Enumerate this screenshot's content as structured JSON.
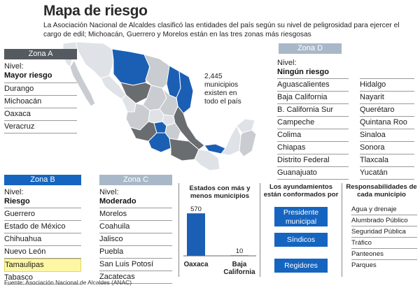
{
  "title": "Mapa de riesgo",
  "lead": "La Asociación Nacional de Alcaldes clasificó las entidades del país según su nivel de peligrosidad para ejercer el cargo de edil; Michoacán, Guerrero y Morelos están en las tres zonas más riesgosas",
  "map_note": [
    "2,445",
    "municipios",
    "existen en",
    "todo el país"
  ],
  "colors": {
    "zone_a": "#555a60",
    "zone_b": "#1565c0",
    "zone_c": "#a9b8c8",
    "zone_d": "#a9b8c8",
    "map_dark": "#6a6d70",
    "map_blue": "#1a5fb4",
    "map_light": "#c9ccd0",
    "map_pale": "#dfe2e6",
    "highlight": "#fdf7a4"
  },
  "zone_a": {
    "header": "Zona A",
    "level_prefix": "Nivel:",
    "level": "Mayor riesgo",
    "items": [
      "Durango",
      "Michoacán",
      "Oaxaca",
      "Veracruz"
    ]
  },
  "zone_d": {
    "header": "Zona D",
    "level_prefix": "Nivel:",
    "level": "Ningún riesgo",
    "col1": [
      "Aguascalientes",
      "Baja California",
      "B. California Sur",
      "Campeche",
      "Colima",
      "Chiapas",
      "Distrito Federal",
      "Guanajuato"
    ],
    "col2": [
      "Hidalgo",
      "Nayarit",
      "Querétaro",
      "Quintana Roo",
      "Sinaloa",
      "Sonora",
      "Tlaxcala",
      "Yucatán"
    ]
  },
  "zone_b": {
    "header": "Zona B",
    "level_prefix": "Nivel:",
    "level": "Riesgo",
    "items": [
      "Guerrero",
      "Estado de México",
      "Chihuahua",
      "Nuevo León",
      "Tamaulipas",
      "Tabasco"
    ],
    "highlighted": "Tamaulipas"
  },
  "zone_c": {
    "header": "Zona C",
    "level_prefix": "Nivel:",
    "level": "Moderado",
    "items": [
      "Morelos",
      "Coahuila",
      "Jalisco",
      "Puebla",
      "San Luis Potosí",
      "Zacatecas"
    ]
  },
  "chart_data": {
    "type": "bar",
    "title": "Estados con más y menos municipios",
    "categories": [
      "Oaxaca",
      "Baja California"
    ],
    "values": [
      570,
      10
    ],
    "xlabel": "",
    "ylabel": "",
    "ylim": [
      0,
      600
    ]
  },
  "ayuntamientos": {
    "header": "Los ayundamientos están conformados por",
    "items": [
      "Presidente municipal",
      "Síndicos",
      "Regidores"
    ]
  },
  "responsabilidades": {
    "header": "Responsabilidades de cada municipio",
    "items": [
      "Agua y drenaje",
      "Alumbrado Público",
      "Seguridad Pública",
      "Tráfico",
      "Panteones",
      "Parques"
    ]
  },
  "source": "Fuente: Asociación Nacional de Alcaldes (ANAC)"
}
